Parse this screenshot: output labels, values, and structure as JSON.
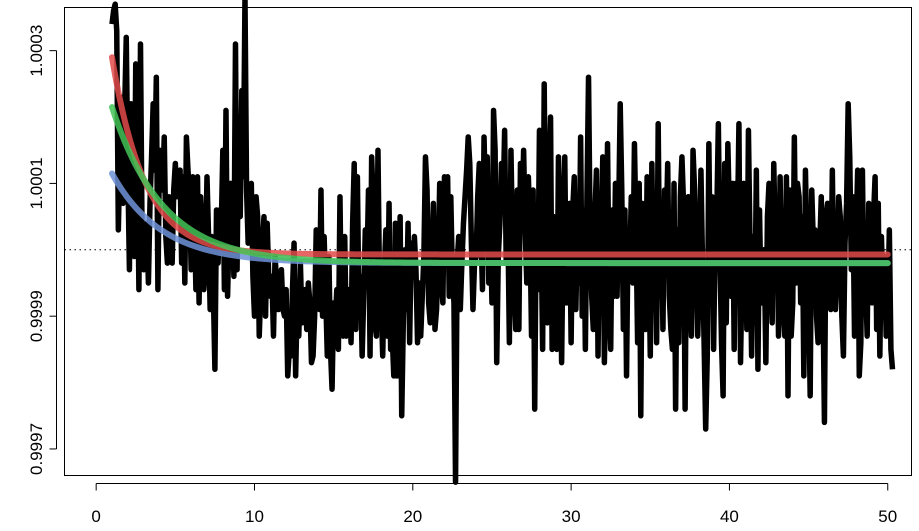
{
  "chart_data": {
    "type": "line",
    "title": "",
    "xlabel": "",
    "ylabel": "",
    "xlim": [
      -2,
      51.5
    ],
    "ylim": [
      0.99966,
      1.000365
    ],
    "x_ticks": [
      0,
      10,
      20,
      30,
      40,
      50
    ],
    "x_tick_labels": [
      "0",
      "10",
      "20",
      "30",
      "40",
      "50"
    ],
    "y_ticks": [
      0.9997,
      0.9999,
      1.0001,
      1.0003
    ],
    "y_tick_labels": [
      "0.9997",
      "0.9999",
      "1.0001",
      "1.0003"
    ],
    "reference_line": {
      "y": 1.0,
      "style": "dotted",
      "color": "#000000"
    },
    "grid": false,
    "legend": "none",
    "series": [
      {
        "color": "#000000",
        "x_start": 1.0,
        "x_step": 0.1,
        "values": [
          1.00034,
          1.00036,
          1.00037,
          1.00033,
          1.00003,
          1.00014,
          1.00023,
          1.00007,
          1.00021,
          1.00032,
          1.00012,
          0.99997,
          1.00022,
          1.00005,
          0.99999,
          1.00028,
          1.00015,
          0.99994,
          1.00031,
          1.00002,
          0.99997,
          0.99998,
          1.00004,
          0.99995,
          1.00007,
          1.00014,
          1.00022,
          1.00012,
          1.00026,
          0.99994,
          1.00015,
          1.00013,
          1.00009,
          1.00017,
          1.00002,
          0.99998,
          1.00008,
          0.99999,
          0.99998,
          1.00009,
          1.00013,
          1.00008,
          1.00011,
          1.00012,
          0.99998,
          1.00011,
          0.99995,
          1.00017,
          1.00012,
          1.00008,
          0.99997,
          1.00011,
          1.00006,
          0.99994,
          1.00011,
          0.99992,
          1.00008,
          1.00002,
          0.99994,
          0.99998,
          1.00011,
          1.00002,
          0.99991,
          1.00002,
          0.99994,
          0.99982,
          1.00006,
          0.99998,
          1.00006,
          1.00003,
          1.00015,
          0.99994,
          1.00021,
          0.99993,
          1.00003,
          1.0001,
          1.00007,
          0.99996,
          1.00031,
          0.99997,
          1.0002,
          1.00005,
          1.00024,
          1.00011,
          1.00038,
          1.00009,
          1.00001,
          1.00002,
          1.0001,
          0.99996,
          0.9999,
          1.00008,
          1.00005,
          0.99987,
          0.99994,
          1.00001,
          1.00005,
          0.9999,
          1.00004,
          0.99996,
          0.99993,
          0.99996,
          0.99987,
          0.99999,
          0.99995,
          0.99991,
          0.99995,
          0.99997,
          0.99991,
          0.9999,
          0.99994,
          0.99981,
          0.99985,
          0.99984,
          0.99994,
          1.00001,
          0.99981,
          0.99993,
          0.99987,
          0.99998,
          0.99989,
          0.99991,
          0.99994,
          0.99988,
          0.99995,
          0.99992,
          0.99983,
          0.99984,
          0.9999,
          1.00003,
          0.99999,
          0.99991,
          1.00009,
          0.9999,
          1.00002,
          0.99993,
          0.99984,
          0.99999,
          0.99985,
          0.99979,
          0.99992,
          0.99989,
          0.99994,
          0.99985,
          1.00008,
          0.99988,
          0.99987,
          1.00002,
          0.99987,
          0.99994,
          0.99994,
          0.99986,
          1.00004,
          1.00013,
          0.99988,
          1.00011,
          0.9999,
          0.99996,
          0.99984,
          0.99993,
          1.00003,
          0.99997,
          1.00009,
          0.99984,
          1.00014,
          1.00007,
          0.99989,
          0.99987,
          1.00015,
          0.99994,
          0.99992,
          0.99984,
          0.99997,
          1.00003,
          0.99987,
          1.00007,
          0.99985,
          0.99987,
          0.99981,
          1.00004,
          0.99981,
          0.99988,
          1.00005,
          0.99975,
          0.99989,
          1.0,
          0.99991,
          1.00004,
          0.99986,
          1.00001,
          0.99996,
          1.00002,
          0.99997,
          0.99986,
          0.99995,
          0.99987,
          0.99993,
          0.99999,
          1.00014,
          1.00009,
          0.99992,
          0.99989,
          0.99998,
          1.00007,
          0.99988,
          0.99991,
          0.99998,
          1.0001,
          0.99996,
          0.99992,
          1.00011,
          0.99998,
          1.00011,
          0.99993,
          1.00008,
          0.99996,
          0.99992,
          0.99965,
          0.99998,
          1.00002,
          0.99991,
          0.99998,
          1.00004,
          1.00008,
          1.00012,
          1.00017,
          1.00013,
          1.00001,
          0.99991,
          0.99998,
          0.99999,
          1.00008,
          1.00013,
          1.00003,
          0.99994,
          1.00017,
          1.00006,
          1.00014,
          0.99995,
          1.00004,
          0.99992,
          1.00021,
          1.00015,
          0.99983,
          0.99999,
          1.00004,
          1.00013,
          1.00006,
          1.00018,
          0.99998,
          1.00005,
          0.99986,
          1.00015,
          1.00001,
          0.99994,
          0.99988,
          1.00009,
          0.99988,
          1.00013,
          1.00004,
          1.00015,
          1.00003,
          0.99995,
          1.00011,
          1.00003,
          0.99987,
          1.00009,
          0.99976,
          1.00006,
          0.99994,
          1.00018,
          1.00004,
          0.99985,
          1.00025,
          0.99997,
          0.99989,
          1.00011,
          1.0002,
          0.99985,
          1.00005,
          0.99995,
          0.99985,
          1.00014,
          1.00002,
          0.99983,
          1.00003,
          1.00014,
          0.99992,
          0.99998,
          1.00007,
          0.99986,
          1.00006,
          1.00011,
          0.99991,
          1.00004,
          0.99995,
          1.00017,
          0.9999,
          1.00006,
          0.99985,
          1.00008,
          1.00026,
          1.00003,
          0.99993,
          0.99988,
          1.00005,
          1.00012,
          0.99984,
          1.00006,
          1.00001,
          1.00014,
          0.99983,
          0.99995,
          1.00016,
          0.99993,
          0.99985,
          1.00006,
          0.99993,
          1.0001,
          0.99993,
          1.00005,
          1.00022,
          1.00009,
          0.99988,
          1.00006,
          0.99981,
          1.00003,
          0.99997,
          1.00008,
          0.99995,
          1.00016,
          1.00003,
          0.99986,
          1.0001,
          0.99975,
          1.00007,
          0.99997,
          0.99988,
          1.00011,
          1.00001,
          0.99984,
          1.00013,
          0.99993,
          1.00003,
          0.99986,
          1.00019,
          0.99993,
          1.00004,
          0.99988,
          1.00009,
          1.00002,
          1.00013,
          0.99993,
          0.99988,
          0.99985,
          1.0001,
          0.99976,
          1.00003,
          0.99986,
          1.00008,
          1.00014,
          1.00007,
          0.99976,
          1.00006,
          1.00008,
          0.99993,
          0.99987,
          1.00015,
          1.00009,
          0.99998,
          0.99987,
          0.99998,
          1.00012,
          0.99998,
          0.99986,
          0.99973,
          0.99984,
          1.00016,
          0.99995,
          1.00008,
          0.99985,
          1.00002,
          1.00005,
          1.00019,
          0.99999,
          0.99986,
          0.99978,
          1.00013,
          0.99989,
          1.00016,
          1.00005,
          0.99993,
          1.0001,
          0.99985,
          1.0001,
          1.00002,
          1.00019,
          0.99983,
          0.99997,
          1.0001,
          1.00004,
          0.99988,
          1.00018,
          1.00001,
          0.99984,
          1.00002,
          0.99989,
          1.00012,
          0.99982,
          1.00006,
          0.99992,
          0.99992,
          1.0,
          0.99983,
          1.00005,
          1.0001,
          0.99997,
          0.99989,
          1.00013,
          1.00001,
          1.00007,
          0.99987,
          1.00011,
          0.99996,
          0.99991,
          0.99987,
          1.00011,
          0.99978,
          1.00009,
          0.99987,
          0.99992,
          1.00017,
          0.99995,
          1.0001,
          1.00008,
          0.99992,
          1.00005,
          0.99981,
          1.00012,
          1.0,
          0.99994,
          0.99978,
          1.00009,
          1.00001,
          1.00003,
          0.9999,
          0.99986,
          1.0,
          1.00008,
          0.99995,
          0.99974,
          1.00005,
          1.00007,
          0.99996,
          0.99991,
          1.00012,
          0.99993,
          0.99991,
          0.99997,
          1.00008,
          1.00005,
          0.9999,
          0.99984,
          1.00001,
          1.00007,
          1.00022,
          1.00014,
          0.99997,
          1.00008,
          0.99987,
          1.00002,
          1.00012,
          0.99981,
          0.99986,
          1.00012,
          0.99992,
          0.99995,
          0.99987,
          1.00007,
          1.0,
          0.99992,
          1.00005,
          1.00011,
          0.99988,
          1.00007,
          0.99984,
          1.00002,
          0.99993,
          0.99999,
          0.99987,
          0.99991,
          1.00003,
          0.99985,
          0.99982
        ]
      },
      {
        "color": "#6f93d8",
        "model": "exponential",
        "asymptote": 0.99998,
        "start_value": 1.000115,
        "decay_rate": 0.32
      },
      {
        "color": "#e24a4a",
        "model": "exponential",
        "asymptote": 0.999993,
        "start_value": 1.00029,
        "decay_rate": 0.48
      },
      {
        "color": "#43c357",
        "model": "exponential",
        "asymptote": 0.99998,
        "start_value": 1.000215,
        "decay_rate": 0.31
      }
    ]
  }
}
